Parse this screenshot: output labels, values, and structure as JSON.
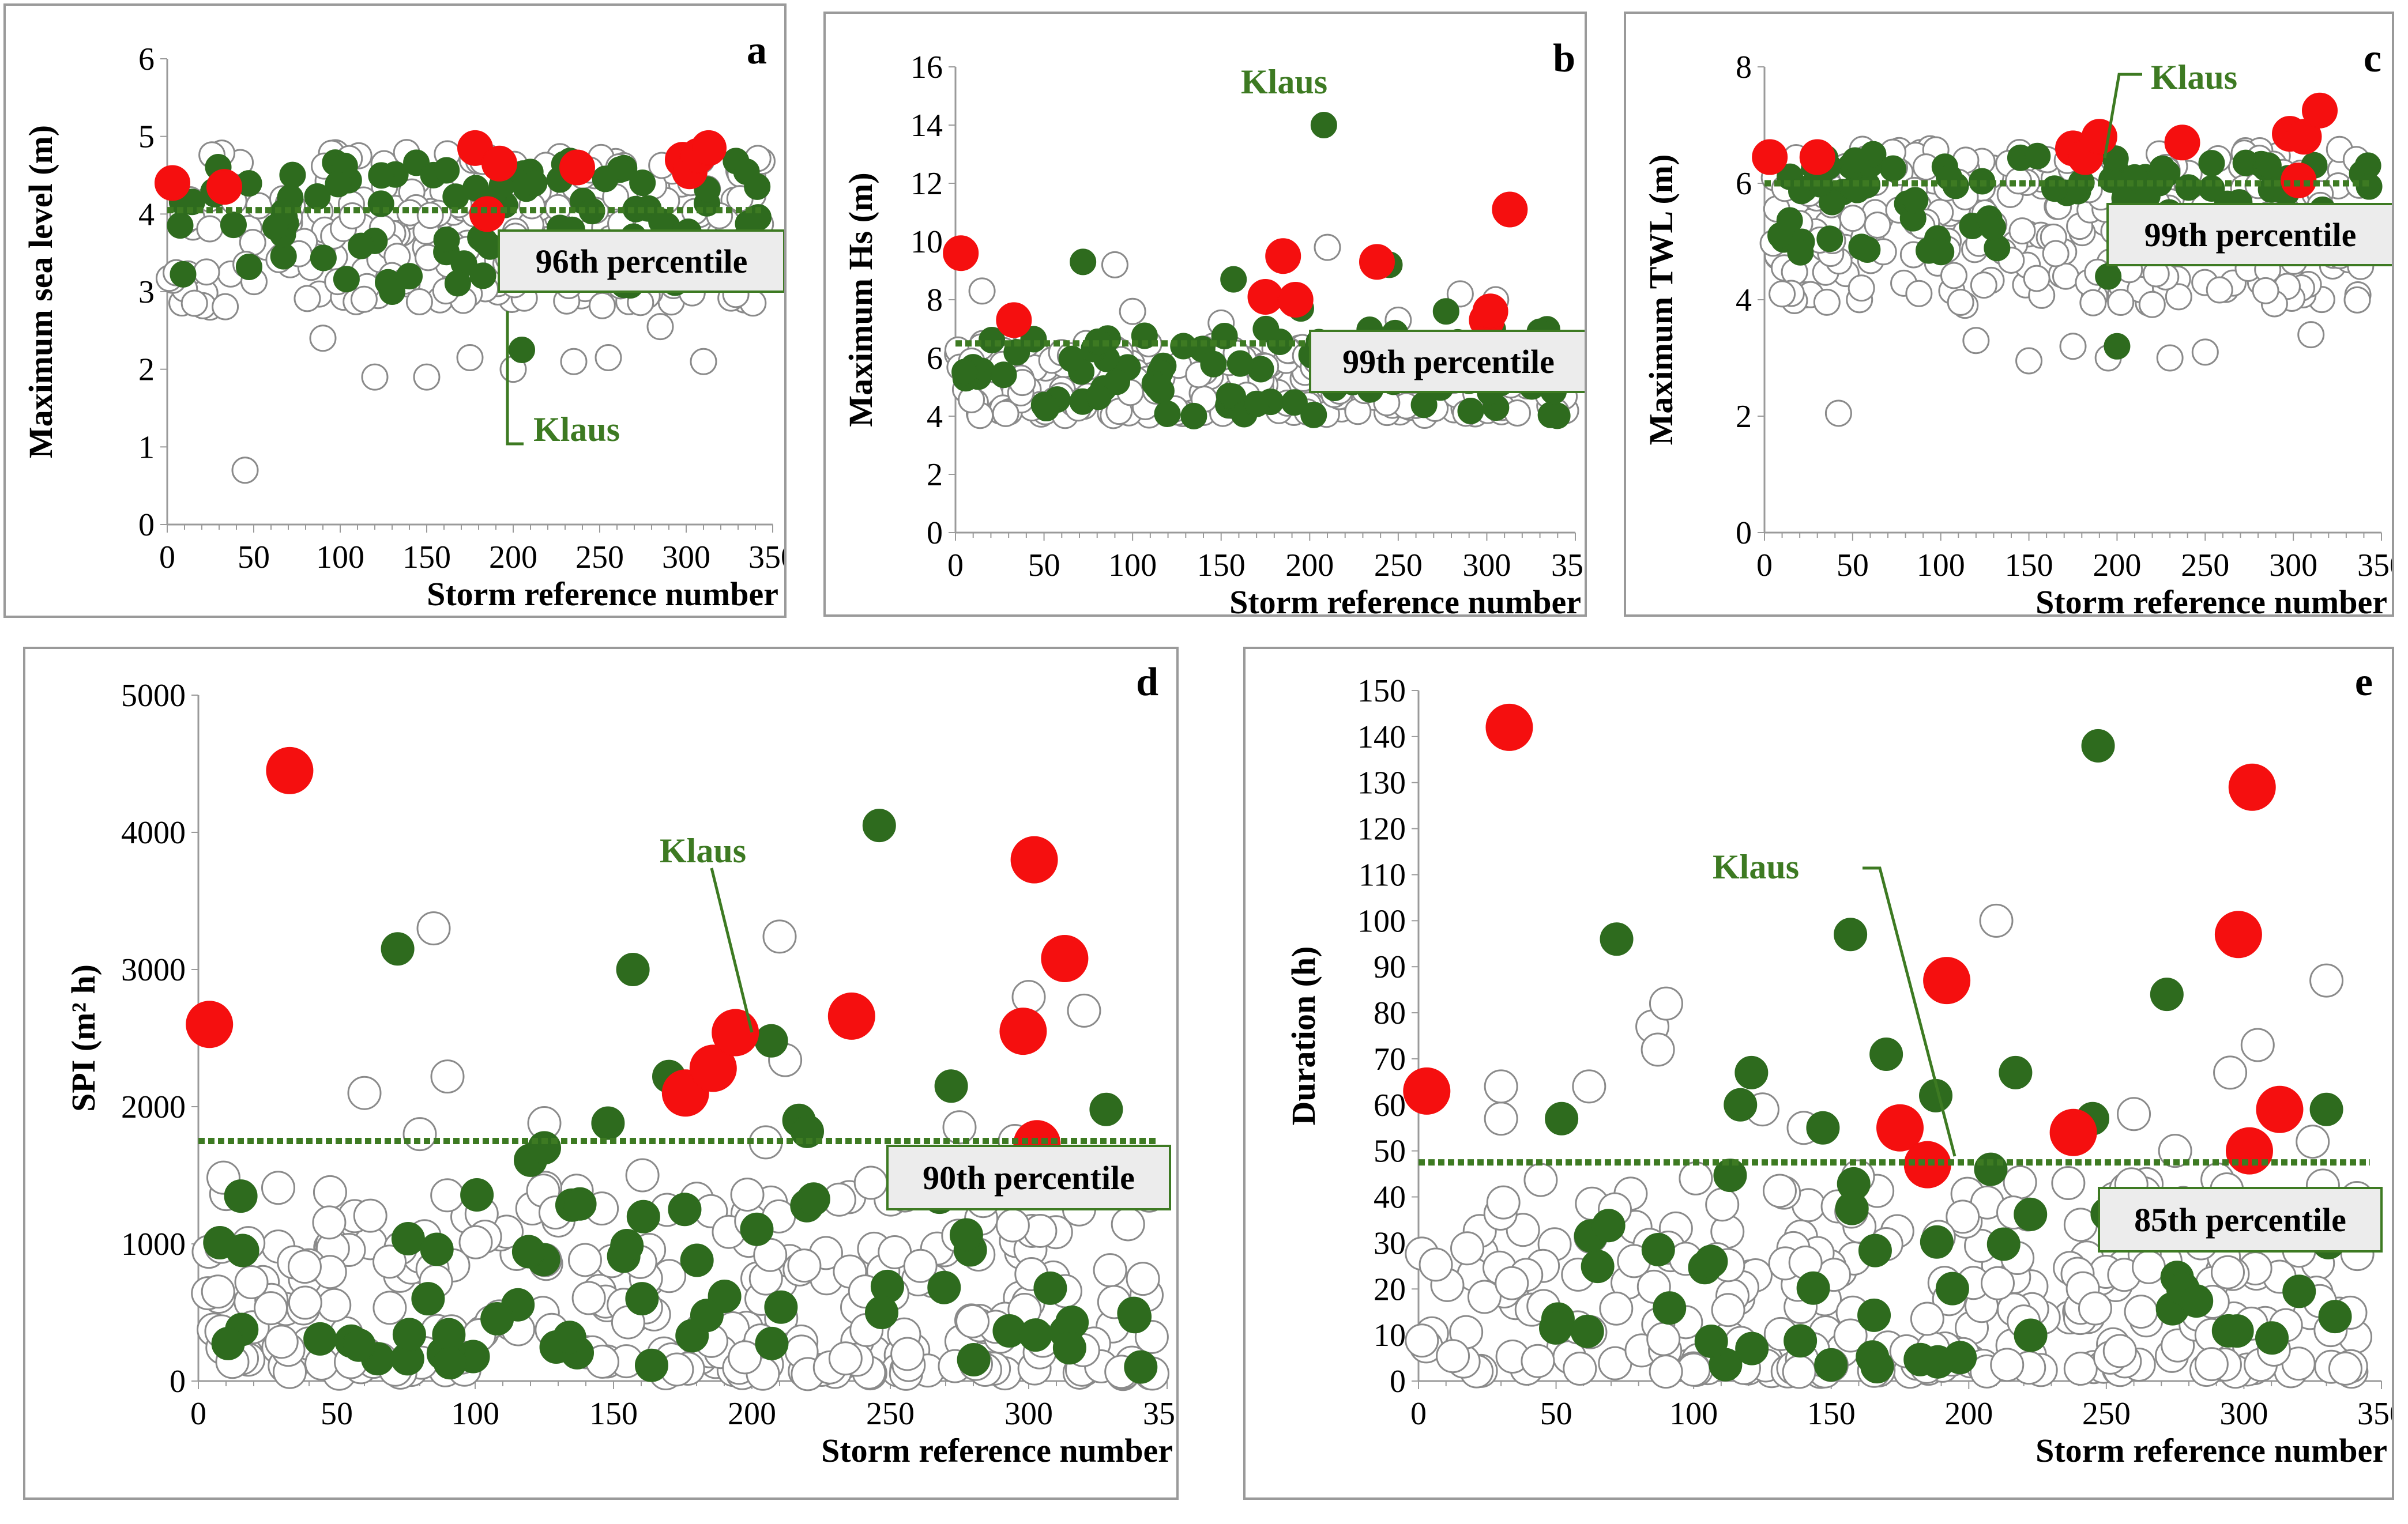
{
  "colors": {
    "grey": "#8a8a8a",
    "green": "#2e6b1e",
    "red": "#f50f0f",
    "dotted": "#3d7a22",
    "klaus": "#3d7a22",
    "boxfill": "#ececec",
    "boxborder": "#3d7a22"
  },
  "chart_data": [
    {
      "id": "a",
      "type": "scatter",
      "panel_label": "a",
      "xlabel": "Storm reference number",
      "ylabel": "Maximum sea level (m)",
      "xlim": [
        0,
        350
      ],
      "ylim": [
        0,
        6
      ],
      "xticks": [
        0,
        50,
        100,
        150,
        200,
        250,
        300,
        350
      ],
      "yticks": [
        0,
        1,
        2,
        3,
        4,
        5,
        6
      ],
      "threshold": 4.05,
      "threshold_label": "96th percentile",
      "klaus_label": "Klaus",
      "klaus_point": [
        205,
        2.25
      ],
      "seed": 11,
      "grey_range": [
        2.8,
        4.8
      ],
      "grey_count": 260,
      "green_range": [
        3.0,
        4.7
      ],
      "green_count": 95,
      "grey_extra": [
        [
          45,
          0.7
        ],
        [
          90,
          2.4
        ],
        [
          120,
          1.9
        ],
        [
          150,
          1.9
        ],
        [
          175,
          2.15
        ],
        [
          200,
          2.0
        ],
        [
          235,
          2.1
        ],
        [
          255,
          2.15
        ],
        [
          285,
          2.55
        ],
        [
          310,
          2.1
        ]
      ],
      "green_extra": [
        [
          205,
          2.25
        ],
        [
          130,
          3.0
        ],
        [
          140,
          3.2
        ]
      ],
      "red": [
        [
          3,
          4.4
        ],
        [
          33,
          4.35
        ],
        [
          178,
          4.85
        ],
        [
          192,
          4.65
        ],
        [
          185,
          4.0
        ],
        [
          237,
          4.6
        ],
        [
          298,
          4.7
        ],
        [
          302,
          4.55
        ],
        [
          307,
          4.75
        ],
        [
          313,
          4.85
        ]
      ]
    },
    {
      "id": "b",
      "type": "scatter",
      "panel_label": "b",
      "xlabel": "Storm reference number",
      "ylabel": "Maximum Hs (m)",
      "xlim": [
        0,
        350
      ],
      "ylim": [
        0,
        16
      ],
      "xticks": [
        0,
        50,
        100,
        150,
        200,
        250,
        300,
        350
      ],
      "yticks": [
        0,
        2,
        4,
        6,
        8,
        10,
        12,
        14,
        16
      ],
      "threshold": 6.5,
      "threshold_label": "99th percentile",
      "klaus_label": "Klaus",
      "klaus_point": [
        208,
        14.0
      ],
      "seed": 23,
      "grey_range": [
        4.0,
        6.5
      ],
      "grey_count": 300,
      "green_range": [
        4.0,
        7.0
      ],
      "green_count": 80,
      "grey_extra": [
        [
          15,
          8.3
        ],
        [
          90,
          9.2
        ],
        [
          100,
          7.6
        ],
        [
          150,
          7.2
        ],
        [
          210,
          9.8
        ],
        [
          250,
          7.3
        ],
        [
          285,
          8.2
        ],
        [
          305,
          8.0
        ]
      ],
      "green_extra": [
        [
          208,
          14.0
        ],
        [
          72,
          9.3
        ],
        [
          157,
          8.7
        ],
        [
          245,
          9.2
        ],
        [
          195,
          7.7
        ],
        [
          277,
          7.6
        ],
        [
          330,
          6.9
        ]
      ],
      "red": [
        [
          3,
          9.6
        ],
        [
          33,
          7.3
        ],
        [
          175,
          8.1
        ],
        [
          185,
          9.5
        ],
        [
          192,
          8.0
        ],
        [
          238,
          9.3
        ],
        [
          300,
          7.3
        ],
        [
          302,
          7.6
        ],
        [
          313,
          11.1
        ]
      ]
    },
    {
      "id": "c",
      "type": "scatter",
      "panel_label": "c",
      "xlabel": "Storm reference number",
      "ylabel": "Maximum TWL (m)",
      "xlim": [
        0,
        350
      ],
      "ylim": [
        0,
        8
      ],
      "xticks": [
        0,
        50,
        100,
        150,
        200,
        250,
        300,
        350
      ],
      "yticks": [
        0,
        2,
        4,
        6,
        8
      ],
      "threshold": 6.0,
      "threshold_label": "99th percentile",
      "klaus_label": "Klaus",
      "klaus_point": [
        210,
        6.1
      ],
      "seed": 37,
      "grey_range": [
        3.9,
        6.6
      ],
      "grey_count": 260,
      "green_range": [
        4.8,
        6.5
      ],
      "green_count": 85,
      "grey_extra": [
        [
          42,
          2.05
        ],
        [
          10,
          4.1
        ],
        [
          55,
          4.2
        ],
        [
          120,
          3.3
        ],
        [
          150,
          2.95
        ],
        [
          175,
          3.2
        ],
        [
          195,
          3.0
        ],
        [
          230,
          3.0
        ],
        [
          250,
          3.1
        ],
        [
          310,
          3.4
        ]
      ],
      "green_extra": [
        [
          195,
          4.4
        ],
        [
          200,
          3.2
        ],
        [
          210,
          6.1
        ]
      ],
      "red": [
        [
          3,
          6.45
        ],
        [
          30,
          6.45
        ],
        [
          175,
          6.6
        ],
        [
          182,
          6.45
        ],
        [
          190,
          6.8
        ],
        [
          237,
          6.7
        ],
        [
          298,
          6.85
        ],
        [
          303,
          6.05
        ],
        [
          306,
          6.8
        ],
        [
          315,
          7.25
        ]
      ]
    },
    {
      "id": "d",
      "type": "scatter",
      "panel_label": "d",
      "xlabel": "Storm reference number",
      "ylabel": "SPI (m² h)",
      "xlim": [
        0,
        350
      ],
      "ylim": [
        0,
        5000
      ],
      "xticks": [
        0,
        50,
        100,
        150,
        200,
        250,
        300,
        350
      ],
      "yticks": [
        0,
        1000,
        2000,
        3000,
        4000,
        5000
      ],
      "threshold": 1750,
      "threshold_label": "90th percentile",
      "klaus_label": "Klaus",
      "klaus_point": [
        207,
        2480
      ],
      "seed": 53,
      "grey_range": [
        50,
        1500
      ],
      "grey_count": 280,
      "green_range": [
        80,
        1400
      ],
      "green_count": 60,
      "grey_extra": [
        [
          60,
          2100
        ],
        [
          85,
          3300
        ],
        [
          90,
          2220
        ],
        [
          80,
          1800
        ],
        [
          125,
          1880
        ],
        [
          210,
          3240
        ],
        [
          212,
          2340
        ],
        [
          205,
          1740
        ],
        [
          300,
          2800
        ],
        [
          320,
          2700
        ],
        [
          275,
          1850
        ],
        [
          295,
          1750
        ]
      ],
      "green_extra": [
        [
          72,
          3150
        ],
        [
          157,
          3000
        ],
        [
          246,
          4050
        ],
        [
          170,
          2220
        ],
        [
          207,
          2480
        ],
        [
          217,
          1900
        ],
        [
          220,
          1820
        ],
        [
          272,
          2150
        ],
        [
          328,
          1980
        ],
        [
          148,
          1880
        ],
        [
          120,
          1610
        ],
        [
          125,
          1700
        ]
      ],
      "red": [
        [
          4,
          2600
        ],
        [
          33,
          4450
        ],
        [
          176,
          2100
        ],
        [
          186,
          2280
        ],
        [
          194,
          2540
        ],
        [
          236,
          2660
        ],
        [
          298,
          2550
        ],
        [
          302,
          3800
        ],
        [
          303,
          1730
        ],
        [
          313,
          3080
        ]
      ]
    },
    {
      "id": "e",
      "type": "scatter",
      "panel_label": "e",
      "xlabel": "Storm reference number",
      "ylabel": "Duration (h)",
      "xlim": [
        0,
        350
      ],
      "ylim": [
        0,
        150
      ],
      "xticks": [
        0,
        50,
        100,
        150,
        200,
        250,
        300,
        350
      ],
      "yticks": [
        0,
        10,
        20,
        30,
        40,
        50,
        60,
        70,
        80,
        90,
        100,
        110,
        120,
        130,
        140,
        150
      ],
      "threshold": 47.5,
      "threshold_label": "85th percentile",
      "klaus_label": "Klaus",
      "klaus_point": [
        208,
        46
      ],
      "seed": 71,
      "grey_range": [
        2,
        45
      ],
      "grey_count": 280,
      "green_range": [
        3,
        45
      ],
      "green_count": 45,
      "grey_extra": [
        [
          30,
          57
        ],
        [
          30,
          64
        ],
        [
          62,
          64
        ],
        [
          85,
          77
        ],
        [
          90,
          82
        ],
        [
          87,
          72
        ],
        [
          125,
          59
        ],
        [
          140,
          55
        ],
        [
          210,
          100
        ],
        [
          260,
          58
        ],
        [
          275,
          50
        ],
        [
          295,
          67
        ],
        [
          305,
          73
        ],
        [
          330,
          87
        ],
        [
          325,
          52
        ]
      ],
      "green_extra": [
        [
          72,
          96
        ],
        [
          157,
          97
        ],
        [
          247,
          138
        ],
        [
          170,
          71
        ],
        [
          121,
          67
        ],
        [
          117,
          60
        ],
        [
          188,
          62
        ],
        [
          217,
          67
        ],
        [
          272,
          84
        ],
        [
          330,
          59
        ],
        [
          52,
          57
        ],
        [
          147,
          55
        ],
        [
          245,
          57
        ],
        [
          208,
          46
        ]
      ],
      "red": [
        [
          3,
          63
        ],
        [
          33,
          142
        ],
        [
          175,
          55
        ],
        [
          185,
          47
        ],
        [
          192,
          87
        ],
        [
          238,
          54
        ],
        [
          298,
          97
        ],
        [
          302,
          50
        ],
        [
          303,
          129
        ],
        [
          313,
          59
        ]
      ]
    }
  ]
}
